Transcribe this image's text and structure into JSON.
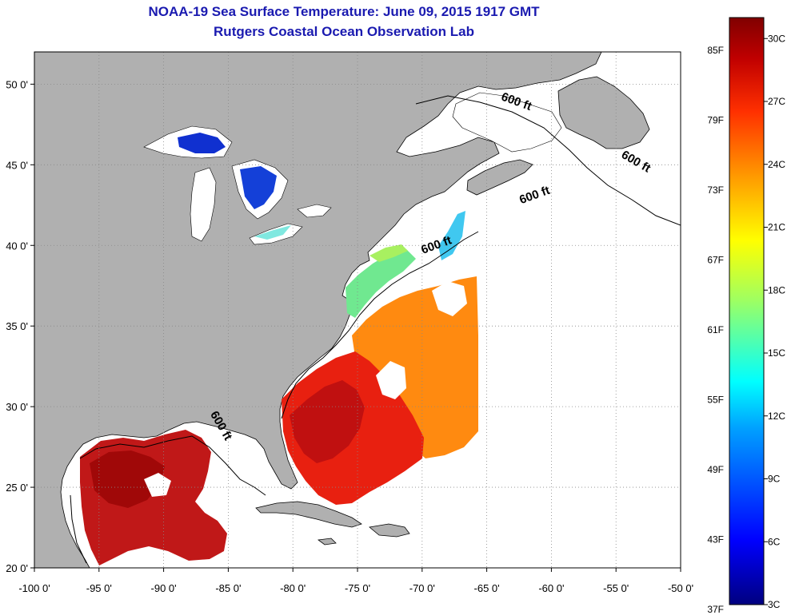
{
  "header": {
    "title": "NOAA-19 Sea Surface Temperature:  June 09, 2015 1917 GMT",
    "subtitle": "Rutgers Coastal Ocean Observation Lab"
  },
  "map": {
    "lon_range": [
      -100,
      -50
    ],
    "lat_range": [
      20,
      52
    ],
    "lon_ticks": [
      {
        "value": -100,
        "label": "-100 0'"
      },
      {
        "value": -95,
        "label": "-95 0'"
      },
      {
        "value": -90,
        "label": "-90 0'"
      },
      {
        "value": -85,
        "label": "-85 0'"
      },
      {
        "value": -80,
        "label": "-80 0'"
      },
      {
        "value": -75,
        "label": "-75 0'"
      },
      {
        "value": -70,
        "label": "-70 0'"
      },
      {
        "value": -65,
        "label": "-65 0'"
      },
      {
        "value": -60,
        "label": "-60 0'"
      },
      {
        "value": -55,
        "label": "-55 0'"
      },
      {
        "value": -50,
        "label": "-50 0'"
      }
    ],
    "lat_ticks": [
      {
        "value": 20,
        "label": "20 0'"
      },
      {
        "value": 25,
        "label": "25 0'"
      },
      {
        "value": 30,
        "label": "30 0'"
      },
      {
        "value": 35,
        "label": "35 0'"
      },
      {
        "value": 40,
        "label": "40 0'"
      },
      {
        "value": 45,
        "label": "45 0'"
      },
      {
        "value": 50,
        "label": "50 0'"
      }
    ],
    "grid": "dotted",
    "isobath_label": "600 ft",
    "isobath_labels": [
      {
        "text": "600 ft",
        "lon": -62.8,
        "lat": 48.7,
        "rotate": 20
      },
      {
        "text": "600 ft",
        "lon": -53.6,
        "lat": 45.0,
        "rotate": 30
      },
      {
        "text": "600 ft",
        "lon": -61.2,
        "lat": 42.9,
        "rotate": -20
      },
      {
        "text": "600 ft",
        "lon": -68.8,
        "lat": 39.8,
        "rotate": -20
      },
      {
        "text": "600 ft",
        "lon": -85.8,
        "lat": 28.7,
        "rotate": 60
      }
    ],
    "colors": {
      "land": "#b0b0b0",
      "water_nodata": "#ffffff",
      "grid": "#888888",
      "coast": "#000000"
    }
  },
  "colorbar": {
    "min_c": 3,
    "max_c": 31,
    "left_labels": [
      "85F",
      "79F",
      "73F",
      "67F",
      "61F",
      "55F",
      "49F",
      "43F",
      "37F"
    ],
    "right_labels": [
      "30C",
      "27C",
      "24C",
      "21C",
      "18C",
      "15C",
      "12C",
      "9C",
      "6C",
      "3C"
    ],
    "stops": [
      "#00007f",
      "#0000ff",
      "#00a0ff",
      "#00ffff",
      "#a0ff60",
      "#ffff00",
      "#ff9000",
      "#ff3000",
      "#c00000",
      "#800000"
    ]
  }
}
